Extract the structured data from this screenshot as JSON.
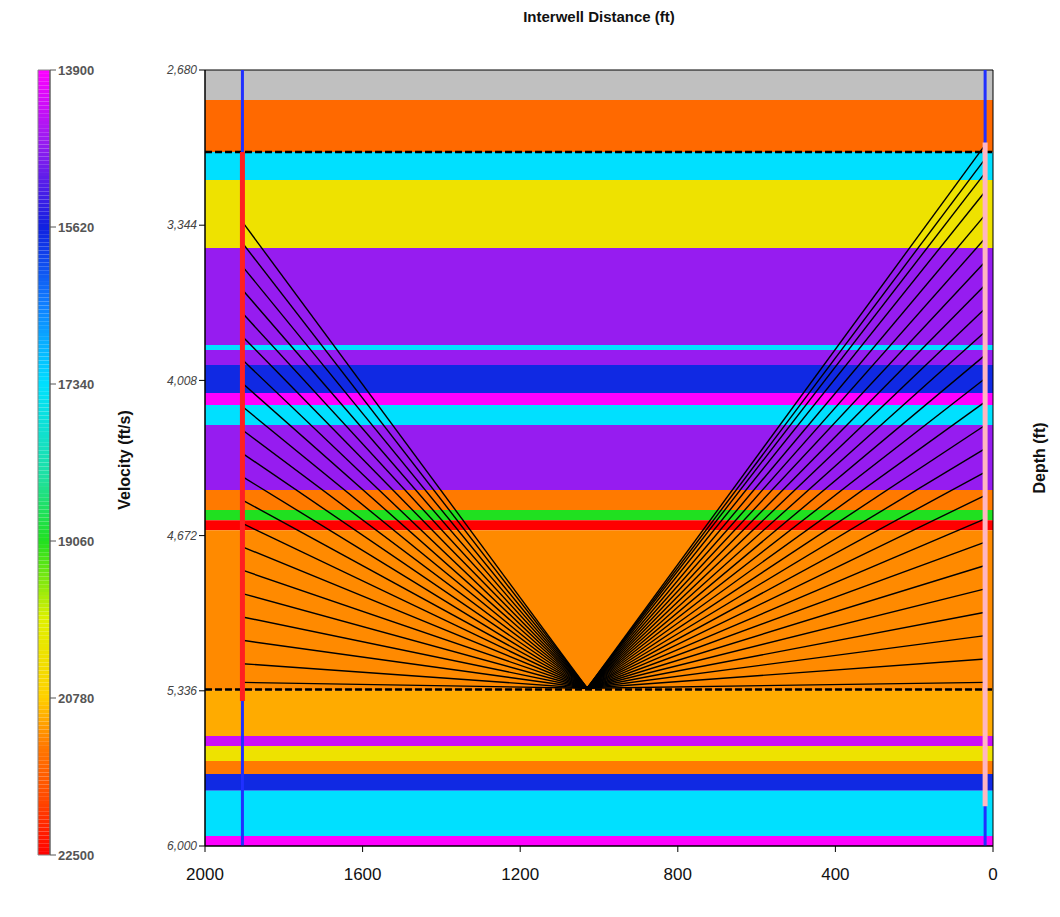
{
  "chart_data": {
    "type": "raytrace",
    "x_label": "Interwell Distance (ft)",
    "y_label": "Depth (ft)",
    "xlim": [
      2000,
      0
    ],
    "xticks": [
      2000,
      1600,
      1200,
      800,
      400,
      0
    ],
    "ylim": [
      6000,
      2680
    ],
    "yticks": [
      {
        "value": 2680,
        "label": "2,680"
      },
      {
        "value": 3344,
        "label": "3,344"
      },
      {
        "value": 4008,
        "label": "4,008"
      },
      {
        "value": 4672,
        "label": "4,672"
      },
      {
        "value": 5336,
        "label": "5,336"
      },
      {
        "value": 6000,
        "label": "6,000"
      }
    ],
    "layers": [
      {
        "top": 2680,
        "bottom": 2808,
        "velocity": null
      },
      {
        "top": 2808,
        "bottom": 3031,
        "velocity": 21500
      },
      {
        "top": 3031,
        "bottom": 3151,
        "velocity": 17340
      },
      {
        "top": 3151,
        "bottom": 3442,
        "velocity": 20300
      },
      {
        "top": 3442,
        "bottom": 3857,
        "velocity": 14700
      },
      {
        "top": 3857,
        "bottom": 3878,
        "velocity": 17340
      },
      {
        "top": 3878,
        "bottom": 3942,
        "velocity": 14700
      },
      {
        "top": 3942,
        "bottom": 4062,
        "velocity": 15700
      },
      {
        "top": 4062,
        "bottom": 4113,
        "velocity": 13900
      },
      {
        "top": 4113,
        "bottom": 4199,
        "velocity": 17340
      },
      {
        "top": 4199,
        "bottom": 4477,
        "velocity": 14700
      },
      {
        "top": 4477,
        "bottom": 4563,
        "velocity": 21300
      },
      {
        "top": 4563,
        "bottom": 4606,
        "velocity": 19060
      },
      {
        "top": 4606,
        "bottom": 4649,
        "velocity": 22500
      },
      {
        "top": 4649,
        "bottom": 5336,
        "velocity": 21200
      },
      {
        "top": 5336,
        "bottom": 5529,
        "velocity": 21000
      },
      {
        "top": 5529,
        "bottom": 5572,
        "velocity": 14300
      },
      {
        "top": 5572,
        "bottom": 5636,
        "velocity": 20300
      },
      {
        "top": 5636,
        "bottom": 5692,
        "velocity": 21300
      },
      {
        "top": 5692,
        "bottom": 5764,
        "velocity": 15700
      },
      {
        "top": 5764,
        "bottom": 5957,
        "velocity": 17340
      },
      {
        "top": 5957,
        "bottom": 6000,
        "velocity": 13900
      }
    ],
    "horizons": [
      3031,
      5330
    ],
    "reflection_point": {
      "x": 1030,
      "y": 5325
    },
    "wells": [
      {
        "x": 1905,
        "color": "#ff2020",
        "span": [
          3031,
          5380
        ],
        "rays": [
          3330,
          3420,
          3520,
          3620,
          3720,
          3820,
          3920,
          4020,
          4120,
          4220,
          4320,
          4420,
          4520,
          4620,
          4720,
          4820,
          4920,
          5020,
          5120,
          5220,
          5300
        ]
      },
      {
        "x": 20,
        "color": "#ffb6c1",
        "span": [
          2990,
          5830
        ],
        "rays": [
          3000,
          3060,
          3120,
          3200,
          3300,
          3400,
          3500,
          3600,
          3700,
          3800,
          3900,
          4000,
          4100,
          4200,
          4300,
          4400,
          4500,
          4600,
          4700,
          4800,
          4900,
          5000,
          5100,
          5200,
          5300
        ]
      }
    ],
    "colorbar": {
      "label": "Velocity (ft/s)",
      "range": [
        22500,
        13900
      ],
      "ticks": [
        13900,
        15620,
        17340,
        19060,
        20780,
        22500
      ]
    }
  }
}
